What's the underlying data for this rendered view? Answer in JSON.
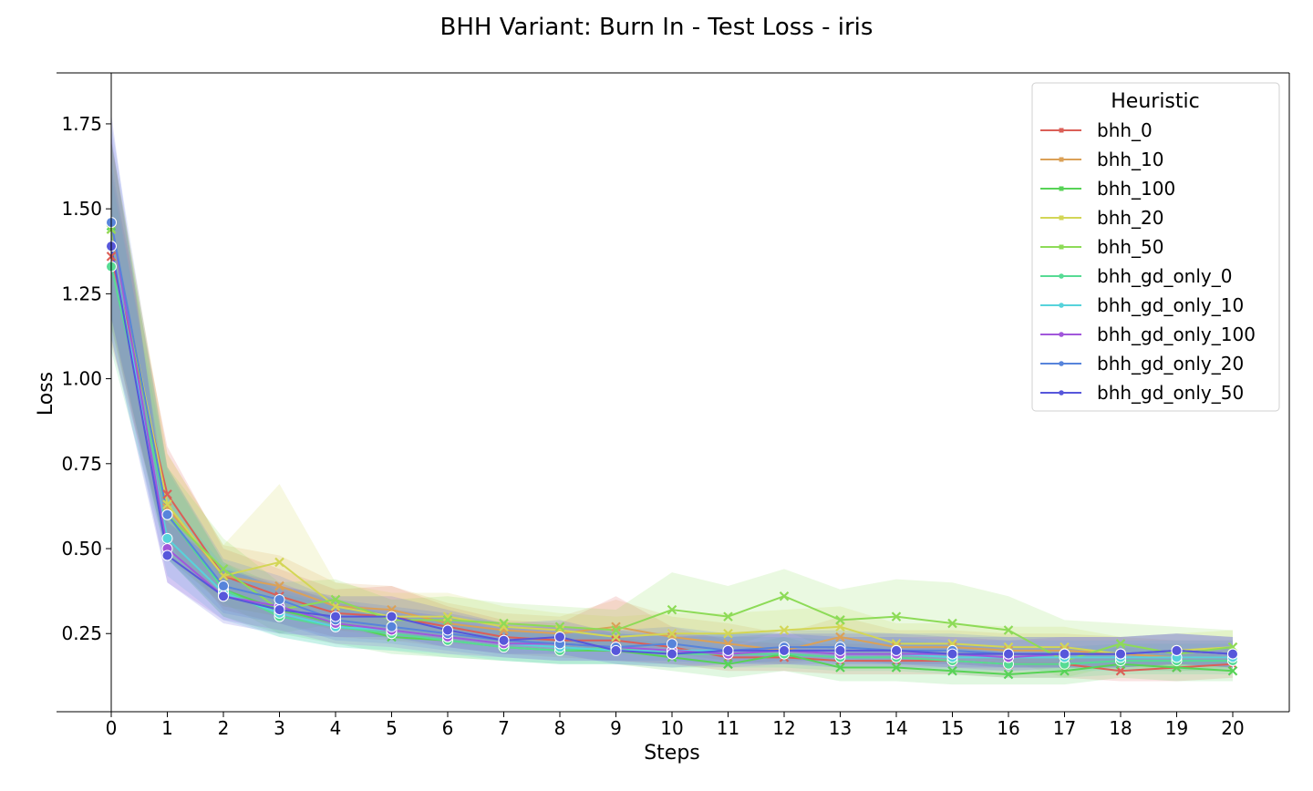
{
  "chart_data": {
    "type": "line",
    "title": "BHH Variant: Burn In - Test Loss - iris",
    "xlabel": "Steps",
    "ylabel": "Loss",
    "x": [
      0,
      1,
      2,
      3,
      4,
      5,
      6,
      7,
      8,
      9,
      10,
      11,
      12,
      13,
      14,
      15,
      16,
      17,
      18,
      19,
      20
    ],
    "xlim": [
      -1,
      21
    ],
    "ylim": [
      0.02,
      1.9
    ],
    "yticks": [
      "0.25",
      "0.50",
      "0.75",
      "1.00",
      "1.25",
      "1.50",
      "1.75"
    ],
    "ytick_values": [
      0.25,
      0.5,
      0.75,
      1.0,
      1.25,
      1.5,
      1.75
    ],
    "legend": {
      "title": "Heuristic",
      "position": "upper right"
    },
    "grid": false,
    "series": [
      {
        "name": "bhh_0",
        "color": "#db5f57",
        "marker": "x",
        "values": [
          1.36,
          0.66,
          0.42,
          0.36,
          0.31,
          0.3,
          0.27,
          0.24,
          0.23,
          0.23,
          0.21,
          0.18,
          0.18,
          0.17,
          0.17,
          0.17,
          0.16,
          0.16,
          0.14,
          0.15,
          0.16
        ],
        "lower": [
          1.1,
          0.52,
          0.32,
          0.28,
          0.24,
          0.23,
          0.21,
          0.19,
          0.18,
          0.17,
          0.16,
          0.14,
          0.14,
          0.13,
          0.13,
          0.13,
          0.12,
          0.12,
          0.11,
          0.11,
          0.12
        ],
        "upper": [
          1.62,
          0.8,
          0.5,
          0.44,
          0.38,
          0.39,
          0.33,
          0.29,
          0.28,
          0.36,
          0.27,
          0.23,
          0.22,
          0.22,
          0.22,
          0.22,
          0.21,
          0.21,
          0.18,
          0.2,
          0.21
        ]
      },
      {
        "name": "bhh_10",
        "color": "#dba157",
        "marker": "x",
        "values": [
          1.44,
          0.62,
          0.42,
          0.39,
          0.33,
          0.32,
          0.28,
          0.26,
          0.25,
          0.27,
          0.24,
          0.22,
          0.2,
          0.24,
          0.21,
          0.21,
          0.2,
          0.2,
          0.19,
          0.18,
          0.18
        ],
        "lower": [
          1.15,
          0.48,
          0.33,
          0.3,
          0.26,
          0.25,
          0.22,
          0.21,
          0.2,
          0.2,
          0.19,
          0.17,
          0.16,
          0.18,
          0.16,
          0.16,
          0.15,
          0.15,
          0.14,
          0.14,
          0.14
        ],
        "upper": [
          1.7,
          0.78,
          0.51,
          0.48,
          0.4,
          0.39,
          0.34,
          0.31,
          0.3,
          0.35,
          0.3,
          0.28,
          0.25,
          0.3,
          0.26,
          0.26,
          0.25,
          0.25,
          0.24,
          0.23,
          0.23
        ]
      },
      {
        "name": "bhh_100",
        "color": "#57d356",
        "marker": "x",
        "values": [
          1.45,
          0.6,
          0.38,
          0.32,
          0.28,
          0.24,
          0.23,
          0.21,
          0.2,
          0.2,
          0.18,
          0.16,
          0.19,
          0.15,
          0.15,
          0.14,
          0.13,
          0.14,
          0.16,
          0.15,
          0.14
        ],
        "lower": [
          1.18,
          0.47,
          0.3,
          0.25,
          0.22,
          0.19,
          0.18,
          0.17,
          0.16,
          0.16,
          0.14,
          0.12,
          0.14,
          0.11,
          0.11,
          0.1,
          0.1,
          0.1,
          0.12,
          0.11,
          0.11
        ],
        "upper": [
          1.7,
          0.74,
          0.46,
          0.39,
          0.35,
          0.3,
          0.28,
          0.26,
          0.25,
          0.24,
          0.22,
          0.21,
          0.24,
          0.2,
          0.2,
          0.19,
          0.18,
          0.19,
          0.21,
          0.2,
          0.18
        ]
      },
      {
        "name": "bhh_20",
        "color": "#d3d656",
        "marker": "x",
        "values": [
          1.44,
          0.63,
          0.42,
          0.46,
          0.33,
          0.3,
          0.3,
          0.27,
          0.26,
          0.24,
          0.25,
          0.25,
          0.26,
          0.27,
          0.22,
          0.22,
          0.21,
          0.21,
          0.19,
          0.2,
          0.21
        ],
        "lower": [
          1.16,
          0.49,
          0.33,
          0.3,
          0.26,
          0.24,
          0.24,
          0.22,
          0.21,
          0.19,
          0.19,
          0.19,
          0.2,
          0.21,
          0.17,
          0.17,
          0.16,
          0.16,
          0.15,
          0.15,
          0.16
        ],
        "upper": [
          1.7,
          0.78,
          0.51,
          0.69,
          0.4,
          0.37,
          0.37,
          0.33,
          0.31,
          0.3,
          0.31,
          0.31,
          0.32,
          0.33,
          0.28,
          0.28,
          0.27,
          0.27,
          0.24,
          0.25,
          0.26
        ]
      },
      {
        "name": "bhh_50",
        "color": "#8ddb57",
        "marker": "x",
        "values": [
          1.44,
          0.6,
          0.44,
          0.32,
          0.35,
          0.29,
          0.29,
          0.28,
          0.27,
          0.26,
          0.32,
          0.3,
          0.36,
          0.29,
          0.3,
          0.28,
          0.26,
          0.17,
          0.22,
          0.19,
          0.21
        ],
        "lower": [
          1.15,
          0.47,
          0.34,
          0.25,
          0.28,
          0.23,
          0.23,
          0.22,
          0.21,
          0.2,
          0.22,
          0.21,
          0.26,
          0.19,
          0.2,
          0.18,
          0.17,
          0.12,
          0.16,
          0.14,
          0.15
        ],
        "upper": [
          1.7,
          0.74,
          0.53,
          0.4,
          0.41,
          0.35,
          0.36,
          0.34,
          0.33,
          0.32,
          0.43,
          0.39,
          0.44,
          0.38,
          0.41,
          0.4,
          0.36,
          0.29,
          0.28,
          0.27,
          0.26
        ]
      },
      {
        "name": "bhh_gd_only_0",
        "color": "#57db94",
        "marker": "o",
        "values": [
          1.33,
          0.6,
          0.38,
          0.3,
          0.27,
          0.25,
          0.23,
          0.21,
          0.2,
          0.21,
          0.19,
          0.19,
          0.19,
          0.18,
          0.18,
          0.17,
          0.16,
          0.16,
          0.17,
          0.17,
          0.17
        ],
        "lower": [
          1.08,
          0.47,
          0.3,
          0.24,
          0.21,
          0.2,
          0.18,
          0.17,
          0.16,
          0.16,
          0.15,
          0.15,
          0.15,
          0.14,
          0.14,
          0.13,
          0.12,
          0.12,
          0.13,
          0.13,
          0.13
        ],
        "upper": [
          1.6,
          0.73,
          0.46,
          0.37,
          0.33,
          0.31,
          0.29,
          0.26,
          0.25,
          0.26,
          0.24,
          0.24,
          0.24,
          0.23,
          0.23,
          0.22,
          0.21,
          0.21,
          0.22,
          0.22,
          0.22
        ]
      },
      {
        "name": "bhh_gd_only_10",
        "color": "#57d3db",
        "marker": "o",
        "values": [
          1.39,
          0.53,
          0.37,
          0.31,
          0.27,
          0.26,
          0.24,
          0.22,
          0.21,
          0.2,
          0.2,
          0.2,
          0.2,
          0.19,
          0.19,
          0.18,
          0.18,
          0.18,
          0.18,
          0.18,
          0.18
        ],
        "lower": [
          1.12,
          0.42,
          0.29,
          0.24,
          0.21,
          0.2,
          0.19,
          0.17,
          0.16,
          0.16,
          0.16,
          0.16,
          0.16,
          0.15,
          0.15,
          0.14,
          0.14,
          0.14,
          0.14,
          0.14,
          0.14
        ],
        "upper": [
          1.65,
          0.65,
          0.45,
          0.38,
          0.33,
          0.32,
          0.3,
          0.27,
          0.26,
          0.25,
          0.25,
          0.25,
          0.25,
          0.24,
          0.24,
          0.23,
          0.23,
          0.23,
          0.23,
          0.23,
          0.23
        ]
      },
      {
        "name": "bhh_gd_only_100",
        "color": "#a157db",
        "marker": "o",
        "values": [
          1.46,
          0.5,
          0.36,
          0.33,
          0.28,
          0.26,
          0.24,
          0.22,
          0.22,
          0.21,
          0.2,
          0.19,
          0.2,
          0.19,
          0.19,
          0.19,
          0.18,
          0.19,
          0.19,
          0.2,
          0.19
        ],
        "lower": [
          1.18,
          0.4,
          0.29,
          0.26,
          0.22,
          0.21,
          0.19,
          0.18,
          0.17,
          0.17,
          0.16,
          0.15,
          0.16,
          0.15,
          0.15,
          0.15,
          0.14,
          0.15,
          0.15,
          0.16,
          0.15
        ],
        "upper": [
          1.72,
          0.62,
          0.44,
          0.4,
          0.34,
          0.32,
          0.3,
          0.27,
          0.27,
          0.26,
          0.25,
          0.24,
          0.25,
          0.24,
          0.24,
          0.24,
          0.23,
          0.24,
          0.24,
          0.25,
          0.24
        ]
      },
      {
        "name": "bhh_gd_only_20",
        "color": "#5784db",
        "marker": "o",
        "values": [
          1.46,
          0.6,
          0.39,
          0.35,
          0.29,
          0.27,
          0.25,
          0.23,
          0.22,
          0.21,
          0.22,
          0.2,
          0.21,
          0.21,
          0.2,
          0.2,
          0.19,
          0.19,
          0.19,
          0.2,
          0.19
        ],
        "lower": [
          1.18,
          0.47,
          0.31,
          0.28,
          0.23,
          0.22,
          0.2,
          0.18,
          0.17,
          0.17,
          0.17,
          0.16,
          0.17,
          0.17,
          0.16,
          0.16,
          0.15,
          0.15,
          0.15,
          0.16,
          0.15
        ],
        "upper": [
          1.75,
          0.74,
          0.47,
          0.42,
          0.35,
          0.33,
          0.31,
          0.28,
          0.27,
          0.26,
          0.27,
          0.25,
          0.26,
          0.26,
          0.25,
          0.25,
          0.24,
          0.24,
          0.24,
          0.25,
          0.24
        ]
      },
      {
        "name": "bhh_gd_only_50",
        "color": "#5757db",
        "marker": "o",
        "values": [
          1.39,
          0.48,
          0.36,
          0.32,
          0.3,
          0.3,
          0.26,
          0.23,
          0.24,
          0.2,
          0.19,
          0.2,
          0.2,
          0.2,
          0.2,
          0.19,
          0.19,
          0.19,
          0.19,
          0.2,
          0.19
        ],
        "lower": [
          1.12,
          0.4,
          0.28,
          0.25,
          0.24,
          0.24,
          0.21,
          0.19,
          0.19,
          0.16,
          0.15,
          0.16,
          0.16,
          0.16,
          0.16,
          0.15,
          0.15,
          0.15,
          0.15,
          0.16,
          0.15
        ],
        "upper": [
          1.78,
          0.58,
          0.44,
          0.39,
          0.36,
          0.36,
          0.32,
          0.28,
          0.29,
          0.25,
          0.24,
          0.25,
          0.25,
          0.25,
          0.25,
          0.24,
          0.24,
          0.24,
          0.24,
          0.25,
          0.24
        ]
      }
    ]
  }
}
